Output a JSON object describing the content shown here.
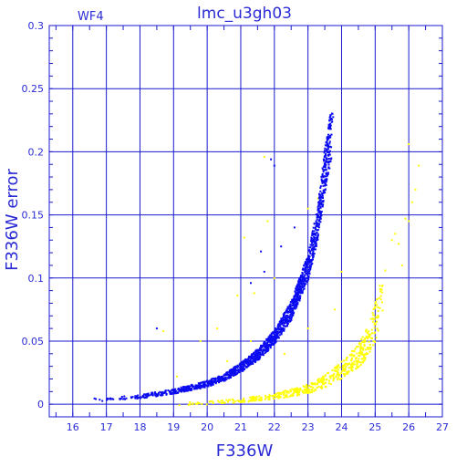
{
  "chart_data": {
    "type": "scatter",
    "title": "lmc_u3gh03",
    "subtitle": "WF4",
    "xlabel": "F336W",
    "ylabel": "F336W error",
    "xlim": [
      15.3,
      27
    ],
    "ylim": [
      -0.01,
      0.3
    ],
    "xticks": [
      "16",
      "17",
      "18",
      "19",
      "20",
      "21",
      "22",
      "23",
      "24",
      "25",
      "26",
      "27"
    ],
    "yticks": [
      "0",
      "0.05",
      "0.1",
      "0.15",
      "0.2",
      "0.25",
      "0.3"
    ],
    "grid": true,
    "colors": {
      "axis": "#1a1ad0",
      "text": "#2b2bd6",
      "primary": "#0b0bf0",
      "secondary": "#ffff00"
    },
    "series": [
      {
        "color": "#0b0bf0",
        "trend": [
          [
            16.0,
            0.003
          ],
          [
            17.0,
            0.004
          ],
          [
            18.0,
            0.006
          ],
          [
            19.0,
            0.01
          ],
          [
            20.0,
            0.016
          ],
          [
            20.5,
            0.021
          ],
          [
            21.0,
            0.029
          ],
          [
            21.5,
            0.039
          ],
          [
            22.0,
            0.053
          ],
          [
            22.5,
            0.074
          ],
          [
            23.0,
            0.108
          ],
          [
            23.3,
            0.145
          ],
          [
            23.5,
            0.185
          ],
          [
            23.7,
            0.215
          ]
        ],
        "outliers": [
          [
            18.5,
            0.06
          ],
          [
            21.6,
            0.121
          ],
          [
            21.7,
            0.105
          ],
          [
            21.9,
            0.194
          ],
          [
            22.0,
            0.189
          ],
          [
            22.6,
            0.14
          ],
          [
            21.3,
            0.096
          ],
          [
            22.2,
            0.125
          ]
        ]
      },
      {
        "color": "#ffff00",
        "trend": [
          [
            19.0,
            0.0
          ],
          [
            20.0,
            0.001
          ],
          [
            21.0,
            0.003
          ],
          [
            22.0,
            0.006
          ],
          [
            22.5,
            0.009
          ],
          [
            23.0,
            0.012
          ],
          [
            23.5,
            0.018
          ],
          [
            24.0,
            0.027
          ],
          [
            24.5,
            0.038
          ],
          [
            24.8,
            0.05
          ],
          [
            25.0,
            0.065
          ],
          [
            25.2,
            0.082
          ]
        ],
        "outliers": [
          [
            18.7,
            0.058
          ],
          [
            19.8,
            0.05
          ],
          [
            20.3,
            0.06
          ],
          [
            20.9,
            0.086
          ],
          [
            21.1,
            0.132
          ],
          [
            21.3,
            0.05
          ],
          [
            21.8,
            0.145
          ],
          [
            22.0,
            0.1
          ],
          [
            21.7,
            0.196
          ],
          [
            23.0,
            0.155
          ],
          [
            23.3,
            0.163
          ],
          [
            24.0,
            0.105
          ],
          [
            25.5,
            0.13
          ],
          [
            25.7,
            0.127
          ],
          [
            25.8,
            0.11
          ],
          [
            26.0,
            0.145
          ],
          [
            26.1,
            0.16
          ],
          [
            26.0,
            0.206
          ],
          [
            26.2,
            0.17
          ],
          [
            26.3,
            0.189
          ],
          [
            25.9,
            0.147
          ],
          [
            25.3,
            0.106
          ],
          [
            25.6,
            0.135
          ],
          [
            22.3,
            0.04
          ],
          [
            23.0,
            0.06
          ],
          [
            23.8,
            0.075
          ],
          [
            19.1,
            0.022
          ],
          [
            20.6,
            0.034
          ],
          [
            21.4,
            0.088
          ]
        ]
      }
    ]
  }
}
